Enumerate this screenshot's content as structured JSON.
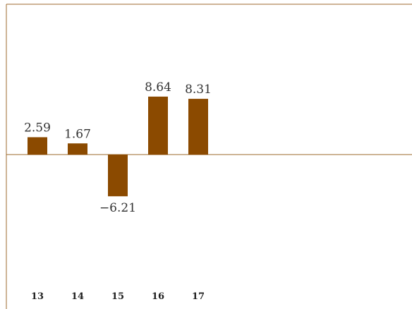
{
  "chart_data": {
    "type": "bar",
    "categories": [
      "13",
      "14",
      "15",
      "16",
      "17"
    ],
    "values": [
      2.59,
      1.67,
      -6.21,
      8.64,
      8.31
    ],
    "data_labels": [
      "2.59",
      "1.67",
      "−6.21",
      "8.64",
      "8.31"
    ],
    "title": "",
    "xlabel": "",
    "ylabel": "",
    "ylim": [
      -23,
      22.4
    ],
    "grid": false,
    "legend": "none",
    "colors": {
      "bar": "#8B4A00",
      "axis": "#9C6A2E"
    }
  }
}
